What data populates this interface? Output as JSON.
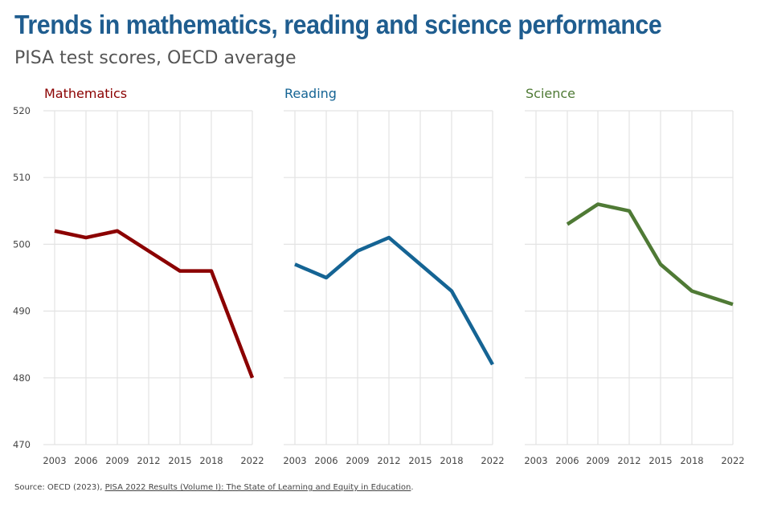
{
  "title": "Trends in mathematics, reading and science performance",
  "subtitle": "PISA test scores, OECD average",
  "source": {
    "prefix": "Source: OECD (2023), ",
    "link_text": "PISA 2022 Results (Volume I): The State of Learning and Equity in Education",
    "suffix": "."
  },
  "chart_data": [
    {
      "type": "line",
      "title": "Mathematics",
      "color": "#8b0000",
      "categories": [
        "2003",
        "2006",
        "2009",
        "2012",
        "2015",
        "2018",
        "2022"
      ],
      "values": [
        502,
        501,
        502,
        499,
        496,
        496,
        480
      ],
      "ylim": [
        470,
        520
      ],
      "yticks": [
        470,
        480,
        490,
        500,
        510,
        520
      ],
      "grid": true
    },
    {
      "type": "line",
      "title": "Reading",
      "color": "#156494",
      "categories": [
        "2003",
        "2006",
        "2009",
        "2012",
        "2015",
        "2018",
        "2022"
      ],
      "values": [
        497,
        495,
        499,
        501,
        497,
        493,
        482
      ],
      "ylim": [
        470,
        520
      ],
      "grid": true
    },
    {
      "type": "line",
      "title": "Science",
      "color": "#4f7a35",
      "categories": [
        "2003",
        "2006",
        "2009",
        "2012",
        "2015",
        "2018",
        "2022"
      ],
      "values": [
        null,
        503,
        506,
        505,
        497,
        493,
        491
      ],
      "ylim": [
        470,
        520
      ],
      "grid": true
    }
  ]
}
